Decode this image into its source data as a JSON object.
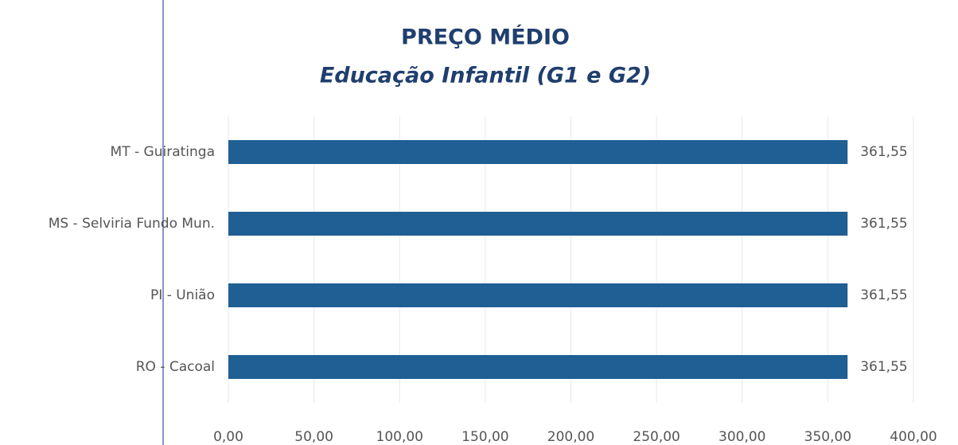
{
  "chart_data": {
    "type": "bar",
    "orientation": "horizontal",
    "title": "PREÇO MÉDIO",
    "subtitle": "Educação Infantil (G1 e G2)",
    "categories": [
      "MT - Guiratinga",
      "MS - Selviria Fundo Mun.",
      "PI - União",
      "RO - Cacoal"
    ],
    "values": [
      361.55,
      361.55,
      361.55,
      361.55
    ],
    "value_labels": [
      "361,55",
      "361,55",
      "361,55",
      "361,55"
    ],
    "color": "#1f5f93",
    "xlim": [
      0,
      400
    ],
    "xticks": [
      {
        "value": 0,
        "label": "0,00"
      },
      {
        "value": 50,
        "label": "50,00"
      },
      {
        "value": 100,
        "label": "100,00"
      },
      {
        "value": 150,
        "label": "150,00"
      },
      {
        "value": 200,
        "label": "200,00"
      },
      {
        "value": 250,
        "label": "250,00"
      },
      {
        "value": 300,
        "label": "300,00"
      },
      {
        "value": 350,
        "label": "350,00"
      },
      {
        "value": 400,
        "label": "400,00"
      }
    ],
    "grid": true
  }
}
